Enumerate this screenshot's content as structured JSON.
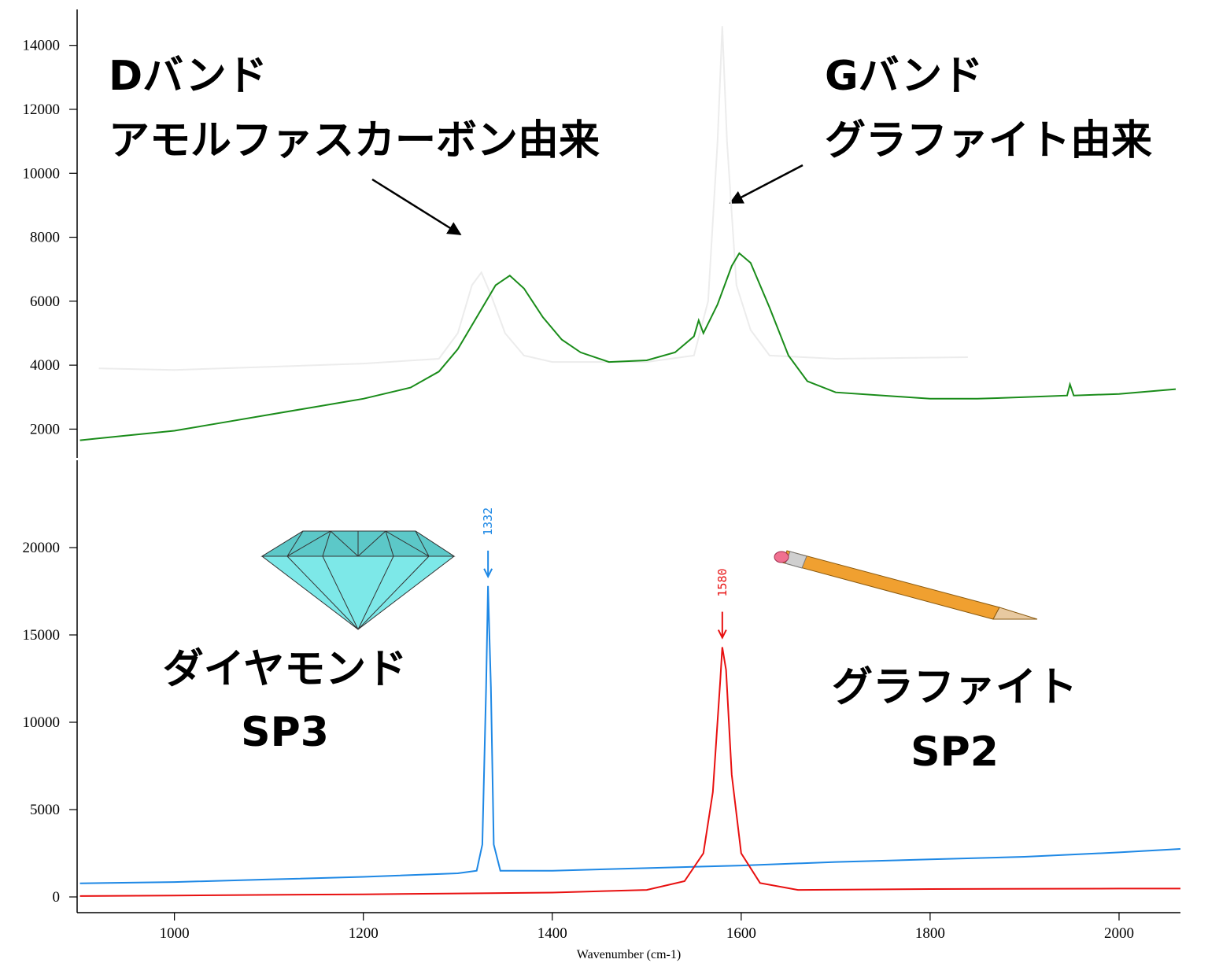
{
  "chart_data": [
    {
      "type": "line",
      "annotations": [
        "Dバンド",
        "アモルファスカーボン由来",
        "Gバンド",
        "グラファイト由来"
      ],
      "xlim": [
        897,
        2065
      ],
      "ylim": [
        1100,
        15050
      ],
      "yticks": [
        2000,
        4000,
        6000,
        8000,
        10000,
        12000,
        14000
      ],
      "series": [
        {
          "color": "#ececec",
          "x": [
            920,
            1000,
            1100,
            1200,
            1280,
            1300,
            1315,
            1325,
            1335,
            1350,
            1370,
            1400,
            1500,
            1550,
            1565,
            1575,
            1580,
            1585,
            1595,
            1610,
            1630,
            1700,
            1840
          ],
          "values": [
            3900,
            3850,
            3950,
            4050,
            4200,
            5000,
            6500,
            6900,
            6200,
            5000,
            4300,
            4100,
            4100,
            4300,
            6000,
            11000,
            14600,
            11000,
            6500,
            5100,
            4300,
            4200,
            4250
          ]
        },
        {
          "color": "#1a8c1a",
          "x": [
            900,
            950,
            1000,
            1050,
            1100,
            1150,
            1200,
            1250,
            1280,
            1300,
            1320,
            1340,
            1355,
            1370,
            1390,
            1410,
            1430,
            1460,
            1500,
            1530,
            1550,
            1555,
            1560,
            1575,
            1590,
            1598,
            1610,
            1630,
            1650,
            1670,
            1700,
            1750,
            1800,
            1850,
            1900,
            1945,
            1948,
            1952,
            2000,
            2060
          ],
          "values": [
            1650,
            1800,
            1950,
            2200,
            2450,
            2700,
            2950,
            3300,
            3800,
            4500,
            5500,
            6500,
            6800,
            6400,
            5500,
            4800,
            4400,
            4100,
            4150,
            4400,
            4900,
            5400,
            5000,
            5900,
            7100,
            7500,
            7200,
            5800,
            4300,
            3500,
            3150,
            3050,
            2950,
            2950,
            3000,
            3050,
            3400,
            3050,
            3100,
            3250
          ]
        }
      ]
    },
    {
      "type": "line",
      "annotations": [
        "ダイヤモンド",
        "SP3",
        "グラファイト",
        "SP2"
      ],
      "x_label": "Wavenumber (cm-1)",
      "xlim": [
        897,
        2065
      ],
      "ylim": [
        -900,
        25000
      ],
      "xticks": [
        1000,
        1200,
        1400,
        1600,
        1800,
        2000
      ],
      "yticks": [
        0,
        5000,
        10000,
        15000,
        20000
      ],
      "peaks": [
        1332,
        1580
      ],
      "series": [
        {
          "color": "#1e88e5",
          "x": [
            900,
            1000,
            1100,
            1200,
            1300,
            1320,
            1326,
            1330,
            1332,
            1335,
            1338,
            1345,
            1400,
            1500,
            1600,
            1700,
            1800,
            1900,
            2000,
            2065
          ],
          "values": [
            780,
            850,
            1000,
            1150,
            1350,
            1500,
            3000,
            12000,
            17800,
            12000,
            3000,
            1500,
            1500,
            1650,
            1800,
            2000,
            2150,
            2300,
            2550,
            2750
          ]
        },
        {
          "color": "#e81010",
          "x": [
            900,
            1000,
            1100,
            1200,
            1300,
            1400,
            1500,
            1540,
            1560,
            1570,
            1578,
            1580,
            1584,
            1590,
            1600,
            1620,
            1660,
            1800,
            2000,
            2065
          ],
          "values": [
            50,
            80,
            120,
            150,
            200,
            250,
            400,
            900,
            2500,
            6000,
            12500,
            14300,
            13000,
            7000,
            2500,
            800,
            400,
            450,
            480,
            480
          ]
        }
      ]
    }
  ]
}
